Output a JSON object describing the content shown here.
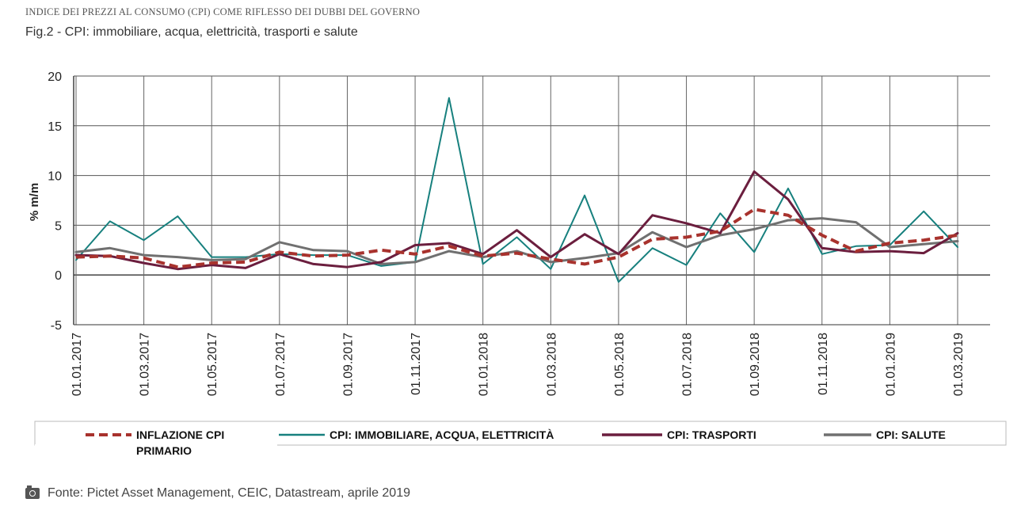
{
  "header": {
    "supertitle": "INDICE DEI PREZZI AL CONSUMO (CPI) COME RIFLESSO DEI DUBBI DEL GOVERNO",
    "subtitle": "Fig.2 - CPI: immobiliare, acqua, elettricità, trasporti e salute"
  },
  "source": {
    "icon": "camera-icon",
    "text": "Fonte: Pictet Asset Management, CEIC, Datastream, aprile 2019"
  },
  "chart_data": {
    "type": "line",
    "ylabel": "% m/m",
    "ylim": [
      -5,
      20
    ],
    "yticks": [
      20,
      15,
      10,
      5,
      0,
      -5
    ],
    "grid": true,
    "legend_position": "bottom",
    "x_tick_labels": [
      "01.01.2017",
      "01.03.2017",
      "01.05.2017",
      "01.07.2017",
      "01.09.2017",
      "01.11.2017",
      "01.01.2018",
      "01.03.2018",
      "01.05.2018",
      "01.07.2018",
      "01.09.2018",
      "01.11.2018",
      "01.01.2019",
      "01.03.2019"
    ],
    "x": [
      "01.01.2017",
      "01.02.2017",
      "01.03.2017",
      "01.04.2017",
      "01.05.2017",
      "01.06.2017",
      "01.07.2017",
      "01.08.2017",
      "01.09.2017",
      "01.10.2017",
      "01.11.2017",
      "01.12.2017",
      "01.01.2018",
      "01.02.2018",
      "01.03.2018",
      "01.04.2018",
      "01.05.2018",
      "01.06.2018",
      "01.07.2018",
      "01.08.2018",
      "01.09.2018",
      "01.10.2018",
      "01.11.2018",
      "01.12.2018",
      "01.01.2019",
      "01.02.2019",
      "01.03.2019"
    ],
    "series": [
      {
        "name": "INFLAZIONE CPI PRIMARIO",
        "color": "#a8322d",
        "dash": true,
        "width": 4,
        "values": [
          1.8,
          1.9,
          1.7,
          0.8,
          1.2,
          1.3,
          2.3,
          1.9,
          2.0,
          2.5,
          2.1,
          2.9,
          1.9,
          2.2,
          1.6,
          1.1,
          1.8,
          3.6,
          3.8,
          4.4,
          6.6,
          6.0,
          4.0,
          2.4,
          3.2,
          3.5,
          4.0
        ]
      },
      {
        "name": "CPI: IMMOBILIARE, ACQUA, ELETTRICITÀ",
        "color": "#17807e",
        "dash": false,
        "width": 2,
        "values": [
          1.5,
          5.4,
          3.5,
          5.9,
          1.8,
          1.8,
          2.1,
          2.0,
          2.0,
          0.9,
          1.3,
          17.8,
          1.1,
          3.8,
          0.6,
          8.0,
          -0.7,
          2.7,
          1.0,
          6.2,
          2.3,
          8.7,
          2.1,
          2.9,
          3.0,
          6.4,
          2.8
        ]
      },
      {
        "name": "CPI: TRASPORTI",
        "color": "#6b1e3e",
        "dash": false,
        "width": 3,
        "values": [
          2.0,
          1.9,
          1.2,
          0.6,
          1.0,
          0.7,
          2.1,
          1.1,
          0.8,
          1.3,
          3.0,
          3.2,
          2.1,
          4.5,
          1.8,
          4.1,
          2.1,
          6.0,
          5.2,
          4.2,
          10.4,
          7.6,
          2.7,
          2.3,
          2.4,
          2.2,
          4.2
        ]
      },
      {
        "name": "CPI: SALUTE",
        "color": "#707070",
        "dash": false,
        "width": 3,
        "values": [
          2.3,
          2.7,
          2.0,
          1.8,
          1.5,
          1.6,
          3.3,
          2.5,
          2.4,
          1.1,
          1.3,
          2.4,
          1.8,
          2.4,
          1.3,
          1.7,
          2.2,
          4.3,
          2.8,
          4.0,
          4.6,
          5.5,
          5.7,
          5.3,
          2.8,
          3.1,
          3.4
        ]
      }
    ]
  }
}
